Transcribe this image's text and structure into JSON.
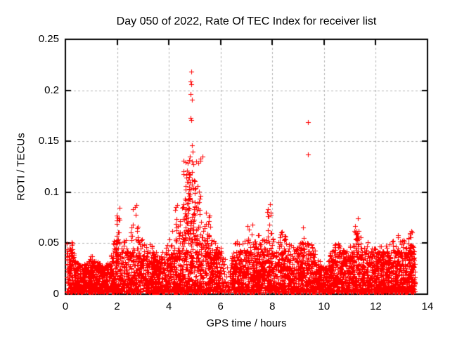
{
  "chart_data": {
    "type": "scatter",
    "title": "Day 050 of 2022, Rate Of TEC Index for receiver list",
    "xlabel": "GPS time / hours",
    "ylabel": "ROTI / TECUs",
    "xlim": [
      0,
      14
    ],
    "ylim": [
      0,
      0.25
    ],
    "xticks": [
      0,
      2,
      4,
      6,
      8,
      10,
      12,
      14
    ],
    "yticks": [
      0,
      0.05,
      0.1,
      0.15,
      0.2,
      0.25
    ],
    "ytick_labels": [
      "0",
      "0.05",
      "0.1",
      "0.15",
      "0.2",
      "0.25"
    ],
    "grid": true,
    "legend": "none",
    "marker": "+",
    "marker_color": "#ff0000",
    "grid_color": "#b0b0b0",
    "axis_color": "#000000",
    "background_color": "#ffffff",
    "time_range": [
      0.05,
      13.52
    ],
    "baseline_band": [
      0.002,
      0.04
    ],
    "envelope": [
      [
        0.08,
        0.05
      ],
      [
        0.25,
        0.048
      ],
      [
        0.4,
        0.032
      ],
      [
        0.6,
        0.028
      ],
      [
        0.8,
        0.03
      ],
      [
        1.0,
        0.038
      ],
      [
        1.2,
        0.032
      ],
      [
        1.45,
        0.028
      ],
      [
        1.7,
        0.032
      ],
      [
        1.85,
        0.05
      ],
      [
        1.95,
        0.09
      ],
      [
        2.05,
        0.08
      ],
      [
        2.2,
        0.06
      ],
      [
        2.35,
        0.055
      ],
      [
        2.5,
        0.058
      ],
      [
        2.65,
        0.09
      ],
      [
        2.75,
        0.085
      ],
      [
        2.9,
        0.065
      ],
      [
        3.05,
        0.055
      ],
      [
        3.2,
        0.048
      ],
      [
        3.35,
        0.052
      ],
      [
        3.5,
        0.042
      ],
      [
        3.65,
        0.038
      ],
      [
        3.8,
        0.045
      ],
      [
        3.95,
        0.052
      ],
      [
        4.1,
        0.06
      ],
      [
        4.25,
        0.085
      ],
      [
        4.35,
        0.095
      ],
      [
        4.45,
        0.08
      ],
      [
        4.55,
        0.1
      ],
      [
        4.65,
        0.12
      ],
      [
        4.75,
        0.135
      ],
      [
        4.85,
        0.13
      ],
      [
        4.95,
        0.11
      ],
      [
        5.05,
        0.095
      ],
      [
        5.15,
        0.09
      ],
      [
        5.25,
        0.08
      ],
      [
        5.35,
        0.068
      ],
      [
        5.45,
        0.085
      ],
      [
        5.55,
        0.075
      ],
      [
        5.7,
        0.058
      ],
      [
        5.85,
        0.052
      ],
      [
        6.0,
        0.05
      ],
      [
        6.15,
        0.038
      ],
      [
        6.3,
        0.025
      ],
      [
        6.45,
        0.04
      ],
      [
        6.6,
        0.055
      ],
      [
        6.75,
        0.048
      ],
      [
        6.9,
        0.058
      ],
      [
        7.05,
        0.072
      ],
      [
        7.2,
        0.078
      ],
      [
        7.35,
        0.058
      ],
      [
        7.5,
        0.065
      ],
      [
        7.65,
        0.058
      ],
      [
        7.8,
        0.085
      ],
      [
        7.9,
        0.09
      ],
      [
        8.0,
        0.068
      ],
      [
        8.15,
        0.055
      ],
      [
        8.3,
        0.068
      ],
      [
        8.45,
        0.062
      ],
      [
        8.6,
        0.058
      ],
      [
        8.75,
        0.048
      ],
      [
        8.9,
        0.046
      ],
      [
        9.05,
        0.052
      ],
      [
        9.2,
        0.068
      ],
      [
        9.3,
        0.072
      ],
      [
        9.45,
        0.058
      ],
      [
        9.6,
        0.045
      ],
      [
        9.75,
        0.038
      ],
      [
        9.9,
        0.028
      ],
      [
        10.05,
        0.026
      ],
      [
        10.2,
        0.038
      ],
      [
        10.35,
        0.05
      ],
      [
        10.5,
        0.055
      ],
      [
        10.65,
        0.045
      ],
      [
        10.8,
        0.042
      ],
      [
        10.95,
        0.048
      ],
      [
        11.1,
        0.06
      ],
      [
        11.25,
        0.076
      ],
      [
        11.4,
        0.058
      ],
      [
        11.55,
        0.055
      ],
      [
        11.7,
        0.06
      ],
      [
        11.85,
        0.052
      ],
      [
        12.0,
        0.046
      ],
      [
        12.15,
        0.05
      ],
      [
        12.3,
        0.046
      ],
      [
        12.45,
        0.05
      ],
      [
        12.6,
        0.052
      ],
      [
        12.75,
        0.06
      ],
      [
        12.9,
        0.065
      ],
      [
        13.05,
        0.055
      ],
      [
        13.2,
        0.052
      ],
      [
        13.35,
        0.06
      ],
      [
        13.5,
        0.05
      ]
    ],
    "density_dips": [
      [
        6.05,
        6.4,
        0.4
      ],
      [
        9.85,
        10.15,
        0.75
      ]
    ],
    "clusters": [
      {
        "t_min": 4.55,
        "t_max": 5.3,
        "y_min": 0.05,
        "y_max": 0.135,
        "count": 85
      },
      {
        "t_min": 4.62,
        "t_max": 5.05,
        "y_min": 0.055,
        "y_max": 0.12,
        "count": 45
      },
      {
        "t_min": 5.35,
        "t_max": 5.6,
        "y_min": 0.045,
        "y_max": 0.085,
        "count": 18
      },
      {
        "t_min": 0.08,
        "t_max": 0.28,
        "y_min": 0.02,
        "y_max": 0.052,
        "count": 22
      },
      {
        "t_min": 1.9,
        "t_max": 2.1,
        "y_min": 0.04,
        "y_max": 0.09,
        "count": 14
      },
      {
        "t_min": 2.6,
        "t_max": 2.85,
        "y_min": 0.04,
        "y_max": 0.09,
        "count": 14
      },
      {
        "t_min": 4.2,
        "t_max": 4.45,
        "y_min": 0.04,
        "y_max": 0.095,
        "count": 16
      },
      {
        "t_min": 7.8,
        "t_max": 7.95,
        "y_min": 0.04,
        "y_max": 0.09,
        "count": 12
      },
      {
        "t_min": 11.15,
        "t_max": 11.35,
        "y_min": 0.04,
        "y_max": 0.076,
        "count": 10
      },
      {
        "t_min": 13.3,
        "t_max": 13.5,
        "y_min": 0.035,
        "y_max": 0.065,
        "count": 12
      }
    ],
    "outliers": [
      [
        4.86,
        0.218
      ],
      [
        4.85,
        0.209
      ],
      [
        4.87,
        0.206
      ],
      [
        4.84,
        0.196
      ],
      [
        4.88,
        0.191
      ],
      [
        4.85,
        0.173
      ],
      [
        4.87,
        0.171
      ],
      [
        4.9,
        0.146
      ],
      [
        4.93,
        0.14
      ],
      [
        9.38,
        0.169
      ],
      [
        9.38,
        0.137
      ]
    ],
    "point_count": 5200,
    "seed": 20220219
  }
}
